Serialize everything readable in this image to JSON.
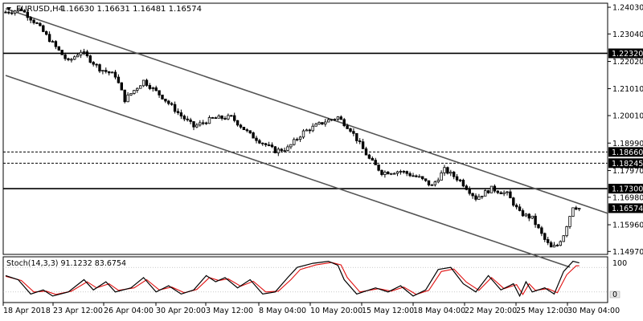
{
  "header": {
    "symbol_tf": "EURUSD,H4",
    "ohlc": "1.16630 1.16631 1.16481 1.16574"
  },
  "indicator": {
    "label": "Stoch(14,3,3) 91.1232 83.6754",
    "scale_max": "100",
    "scale_min": "0"
  },
  "colors": {
    "background": "#ffffff",
    "candle": "#000000",
    "grid": "#c8c8c8",
    "channel": "#555555",
    "stoch_main": "#000000",
    "stoch_signal": "#e01010"
  },
  "chart_data": {
    "type": "candlestick",
    "price_range": [
      1.1486,
      1.2418
    ],
    "y_ticks": [
      "1.24030",
      "1.23040",
      "1.22020",
      "1.21010",
      "1.20010",
      "1.18990",
      "1.17970",
      "1.16980",
      "1.15960",
      "1.14970"
    ],
    "x_ticks": [
      "18 Apr 2018",
      "23 Apr 12:00",
      "26 Apr 04:00",
      "30 Apr 20:00",
      "3 May 12:00",
      "8 May 04:00",
      "10 May 20:00",
      "15 May 12:00",
      "18 May 04:00",
      "22 May 20:00",
      "25 May 12:00",
      "30 May 04:00"
    ],
    "levels": [
      {
        "price": 1.2232,
        "label": "1.22320",
        "style": "solid"
      },
      {
        "price": 1.1866,
        "label": "1.18660",
        "style": "dashed"
      },
      {
        "price": 1.18245,
        "label": "1.18245",
        "style": "dashed"
      },
      {
        "price": 1.173,
        "label": "1.17300",
        "style": "solid"
      },
      {
        "price": 1.16574,
        "label": "1.16574",
        "style": "current"
      }
    ],
    "channel": {
      "upper": [
        {
          "bar": 0,
          "price": 1.2398
        },
        {
          "bar": 180,
          "price": 1.1686
        }
      ],
      "lower": [
        {
          "bar": 0,
          "price": 1.215
        },
        {
          "bar": 168,
          "price": 1.1486
        }
      ]
    },
    "anchors": [
      {
        "bar": 0,
        "price": 1.2385
      },
      {
        "bar": 5,
        "price": 1.2395
      },
      {
        "bar": 10,
        "price": 1.234
      },
      {
        "bar": 16,
        "price": 1.2255
      },
      {
        "bar": 20,
        "price": 1.22
      },
      {
        "bar": 24,
        "price": 1.224
      },
      {
        "bar": 30,
        "price": 1.2175
      },
      {
        "bar": 35,
        "price": 1.215
      },
      {
        "bar": 38,
        "price": 1.206
      },
      {
        "bar": 44,
        "price": 1.213
      },
      {
        "bar": 50,
        "price": 1.207
      },
      {
        "bar": 56,
        "price": 1.2
      },
      {
        "bar": 60,
        "price": 1.196
      },
      {
        "bar": 66,
        "price": 1.199
      },
      {
        "bar": 72,
        "price": 1.1995
      },
      {
        "bar": 78,
        "price": 1.193
      },
      {
        "bar": 86,
        "price": 1.187
      },
      {
        "bar": 90,
        "price": 1.188
      },
      {
        "bar": 95,
        "price": 1.194
      },
      {
        "bar": 102,
        "price": 1.198
      },
      {
        "bar": 106,
        "price": 1.1995
      },
      {
        "bar": 110,
        "price": 1.195
      },
      {
        "bar": 116,
        "price": 1.184
      },
      {
        "bar": 120,
        "price": 1.179
      },
      {
        "bar": 126,
        "price": 1.1795
      },
      {
        "bar": 132,
        "price": 1.177
      },
      {
        "bar": 136,
        "price": 1.174
      },
      {
        "bar": 140,
        "price": 1.18
      },
      {
        "bar": 145,
        "price": 1.176
      },
      {
        "bar": 150,
        "price": 1.1695
      },
      {
        "bar": 155,
        "price": 1.173
      },
      {
        "bar": 160,
        "price": 1.171
      },
      {
        "bar": 164,
        "price": 1.164
      },
      {
        "bar": 168,
        "price": 1.162
      },
      {
        "bar": 172,
        "price": 1.154
      },
      {
        "bar": 174,
        "price": 1.151
      },
      {
        "bar": 176,
        "price": 1.152
      },
      {
        "bar": 178,
        "price": 1.156
      },
      {
        "bar": 181,
        "price": 1.1665
      },
      {
        "bar": 183,
        "price": 1.1657
      }
    ],
    "stochastic": {
      "k_period": 14,
      "d_period": 3,
      "slowing": 3,
      "main_last": 91.1232,
      "signal_last": 83.6754,
      "levels": [
        80,
        20
      ],
      "main": [
        {
          "bar": 0,
          "value": 60
        },
        {
          "bar": 4,
          "value": 50
        },
        {
          "bar": 8,
          "value": 15
        },
        {
          "bar": 12,
          "value": 25
        },
        {
          "bar": 15,
          "value": 10
        },
        {
          "bar": 20,
          "value": 20
        },
        {
          "bar": 25,
          "value": 50
        },
        {
          "bar": 28,
          "value": 25
        },
        {
          "bar": 32,
          "value": 45
        },
        {
          "bar": 35,
          "value": 20
        },
        {
          "bar": 40,
          "value": 30
        },
        {
          "bar": 44,
          "value": 55
        },
        {
          "bar": 48,
          "value": 20
        },
        {
          "bar": 52,
          "value": 35
        },
        {
          "bar": 56,
          "value": 15
        },
        {
          "bar": 60,
          "value": 25
        },
        {
          "bar": 64,
          "value": 60
        },
        {
          "bar": 67,
          "value": 45
        },
        {
          "bar": 70,
          "value": 55
        },
        {
          "bar": 74,
          "value": 30
        },
        {
          "bar": 78,
          "value": 50
        },
        {
          "bar": 82,
          "value": 15
        },
        {
          "bar": 86,
          "value": 20
        },
        {
          "bar": 90,
          "value": 55
        },
        {
          "bar": 93,
          "value": 80
        },
        {
          "bar": 98,
          "value": 90
        },
        {
          "bar": 103,
          "value": 95
        },
        {
          "bar": 106,
          "value": 85
        },
        {
          "bar": 108,
          "value": 50
        },
        {
          "bar": 112,
          "value": 15
        },
        {
          "bar": 118,
          "value": 30
        },
        {
          "bar": 122,
          "value": 20
        },
        {
          "bar": 126,
          "value": 35
        },
        {
          "bar": 130,
          "value": 10
        },
        {
          "bar": 134,
          "value": 25
        },
        {
          "bar": 138,
          "value": 75
        },
        {
          "bar": 142,
          "value": 80
        },
        {
          "bar": 146,
          "value": 40
        },
        {
          "bar": 150,
          "value": 20
        },
        {
          "bar": 154,
          "value": 60
        },
        {
          "bar": 158,
          "value": 25
        },
        {
          "bar": 162,
          "value": 40
        },
        {
          "bar": 164,
          "value": 10
        },
        {
          "bar": 166,
          "value": 45
        },
        {
          "bar": 168,
          "value": 20
        },
        {
          "bar": 172,
          "value": 30
        },
        {
          "bar": 175,
          "value": 15
        },
        {
          "bar": 178,
          "value": 70
        },
        {
          "bar": 181,
          "value": 95
        },
        {
          "bar": 183,
          "value": 91
        }
      ],
      "signal": [
        {
          "bar": 0,
          "value": 58
        },
        {
          "bar": 5,
          "value": 48
        },
        {
          "bar": 9,
          "value": 20
        },
        {
          "bar": 13,
          "value": 22
        },
        {
          "bar": 16,
          "value": 14
        },
        {
          "bar": 21,
          "value": 22
        },
        {
          "bar": 26,
          "value": 45
        },
        {
          "bar": 29,
          "value": 30
        },
        {
          "bar": 33,
          "value": 40
        },
        {
          "bar": 36,
          "value": 24
        },
        {
          "bar": 41,
          "value": 30
        },
        {
          "bar": 45,
          "value": 50
        },
        {
          "bar": 49,
          "value": 25
        },
        {
          "bar": 53,
          "value": 32
        },
        {
          "bar": 57,
          "value": 18
        },
        {
          "bar": 61,
          "value": 26
        },
        {
          "bar": 65,
          "value": 55
        },
        {
          "bar": 68,
          "value": 48
        },
        {
          "bar": 71,
          "value": 52
        },
        {
          "bar": 75,
          "value": 34
        },
        {
          "bar": 79,
          "value": 46
        },
        {
          "bar": 83,
          "value": 20
        },
        {
          "bar": 87,
          "value": 22
        },
        {
          "bar": 91,
          "value": 50
        },
        {
          "bar": 94,
          "value": 75
        },
        {
          "bar": 99,
          "value": 86
        },
        {
          "bar": 104,
          "value": 92
        },
        {
          "bar": 107,
          "value": 86
        },
        {
          "bar": 109,
          "value": 55
        },
        {
          "bar": 113,
          "value": 20
        },
        {
          "bar": 119,
          "value": 28
        },
        {
          "bar": 123,
          "value": 22
        },
        {
          "bar": 127,
          "value": 32
        },
        {
          "bar": 131,
          "value": 14
        },
        {
          "bar": 135,
          "value": 24
        },
        {
          "bar": 139,
          "value": 70
        },
        {
          "bar": 143,
          "value": 76
        },
        {
          "bar": 147,
          "value": 44
        },
        {
          "bar": 151,
          "value": 24
        },
        {
          "bar": 155,
          "value": 55
        },
        {
          "bar": 159,
          "value": 28
        },
        {
          "bar": 163,
          "value": 38
        },
        {
          "bar": 165,
          "value": 14
        },
        {
          "bar": 167,
          "value": 40
        },
        {
          "bar": 169,
          "value": 24
        },
        {
          "bar": 173,
          "value": 28
        },
        {
          "bar": 176,
          "value": 18
        },
        {
          "bar": 179,
          "value": 62
        },
        {
          "bar": 182,
          "value": 84
        },
        {
          "bar": 183,
          "value": 84
        }
      ]
    }
  }
}
